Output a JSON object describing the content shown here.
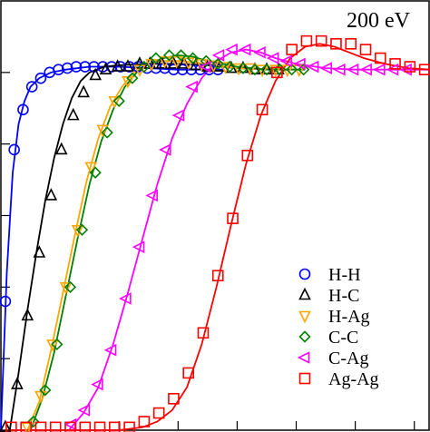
{
  "chart_data": {
    "type": "scatter",
    "title": "",
    "annotation": "200 eV",
    "xlabel": "",
    "ylabel": "",
    "xlim": [
      0,
      14.5
    ],
    "ylim": [
      0,
      1.5
    ],
    "yticks": [
      0.25,
      0.5,
      0.75,
      1.0,
      1.25
    ],
    "xticks": [
      4,
      6,
      8,
      10,
      12,
      14
    ],
    "legend_position": "lower-right",
    "series": [
      {
        "name": "H-H",
        "color": "#0000ff",
        "marker": "circle",
        "points": [
          [
            0.15,
            0.45
          ],
          [
            0.45,
            0.98
          ],
          [
            0.75,
            1.12
          ],
          [
            1.05,
            1.2
          ],
          [
            1.35,
            1.23
          ],
          [
            1.65,
            1.25
          ],
          [
            1.95,
            1.26
          ],
          [
            2.25,
            1.265
          ],
          [
            2.55,
            1.27
          ],
          [
            2.85,
            1.27
          ],
          [
            3.15,
            1.27
          ],
          [
            3.45,
            1.27
          ],
          [
            3.75,
            1.27
          ],
          [
            4.05,
            1.27
          ],
          [
            4.35,
            1.27
          ],
          [
            4.65,
            1.27
          ],
          [
            4.95,
            1.265
          ],
          [
            5.25,
            1.265
          ],
          [
            5.55,
            1.265
          ],
          [
            5.85,
            1.26
          ],
          [
            6.15,
            1.26
          ],
          [
            6.45,
            1.26
          ],
          [
            6.75,
            1.26
          ],
          [
            7.05,
            1.26
          ],
          [
            7.35,
            1.26
          ]
        ],
        "curve": [
          [
            0,
            0
          ],
          [
            0.2,
            0.55
          ],
          [
            0.4,
            0.9
          ],
          [
            0.6,
            1.07
          ],
          [
            0.8,
            1.15
          ],
          [
            1.0,
            1.2
          ],
          [
            1.3,
            1.23
          ],
          [
            1.7,
            1.25
          ],
          [
            2.2,
            1.26
          ],
          [
            3.0,
            1.27
          ],
          [
            4.0,
            1.27
          ],
          [
            5.0,
            1.265
          ],
          [
            6.0,
            1.26
          ],
          [
            7.5,
            1.26
          ]
        ]
      },
      {
        "name": "H-C",
        "color": "#000000",
        "marker": "triangle-up",
        "points": [
          [
            0.15,
            0.01
          ],
          [
            0.55,
            0.16
          ],
          [
            0.9,
            0.4
          ],
          [
            1.3,
            0.62
          ],
          [
            1.7,
            0.82
          ],
          [
            2.05,
            0.98
          ],
          [
            2.45,
            1.1
          ],
          [
            2.8,
            1.18
          ],
          [
            3.2,
            1.24
          ],
          [
            3.55,
            1.26
          ],
          [
            3.95,
            1.27
          ],
          [
            4.3,
            1.27
          ],
          [
            4.7,
            1.28
          ],
          [
            5.05,
            1.28
          ],
          [
            5.45,
            1.28
          ],
          [
            5.85,
            1.28
          ],
          [
            6.2,
            1.28
          ],
          [
            6.6,
            1.275
          ],
          [
            7.0,
            1.27
          ],
          [
            7.4,
            1.27
          ],
          [
            7.8,
            1.265
          ],
          [
            8.2,
            1.265
          ],
          [
            8.6,
            1.26
          ],
          [
            9.0,
            1.26
          ],
          [
            9.4,
            1.26
          ]
        ],
        "curve": [
          [
            0.3,
            0
          ],
          [
            0.6,
            0.2
          ],
          [
            0.9,
            0.42
          ],
          [
            1.2,
            0.62
          ],
          [
            1.5,
            0.8
          ],
          [
            1.8,
            0.95
          ],
          [
            2.1,
            1.07
          ],
          [
            2.4,
            1.16
          ],
          [
            2.7,
            1.22
          ],
          [
            3.0,
            1.25
          ],
          [
            3.5,
            1.27
          ],
          [
            4.0,
            1.275
          ],
          [
            5.0,
            1.28
          ],
          [
            6.0,
            1.28
          ],
          [
            7.0,
            1.275
          ],
          [
            8.0,
            1.265
          ],
          [
            9.5,
            1.26
          ]
        ]
      },
      {
        "name": "H-Ag",
        "color": "#ffa500",
        "marker": "triangle-down",
        "points": [
          [
            0.9,
            0.01
          ],
          [
            1.35,
            0.12
          ],
          [
            1.75,
            0.3
          ],
          [
            2.2,
            0.5
          ],
          [
            2.6,
            0.7
          ],
          [
            3.05,
            0.92
          ],
          [
            3.45,
            1.05
          ],
          [
            3.85,
            1.15
          ],
          [
            4.3,
            1.22
          ],
          [
            4.7,
            1.26
          ],
          [
            5.1,
            1.28
          ],
          [
            5.55,
            1.29
          ],
          [
            5.95,
            1.29
          ],
          [
            6.35,
            1.285
          ],
          [
            6.8,
            1.28
          ],
          [
            7.2,
            1.275
          ],
          [
            7.6,
            1.27
          ],
          [
            8.05,
            1.265
          ],
          [
            8.45,
            1.265
          ],
          [
            8.85,
            1.26
          ],
          [
            9.3,
            1.26
          ],
          [
            9.7,
            1.26
          ],
          [
            10.1,
            1.26
          ]
        ],
        "curve": [
          [
            0.9,
            0
          ],
          [
            1.3,
            0.1
          ],
          [
            1.7,
            0.28
          ],
          [
            2.1,
            0.48
          ],
          [
            2.5,
            0.68
          ],
          [
            2.9,
            0.87
          ],
          [
            3.3,
            1.02
          ],
          [
            3.7,
            1.13
          ],
          [
            4.1,
            1.2
          ],
          [
            4.5,
            1.25
          ],
          [
            5.0,
            1.28
          ],
          [
            5.5,
            1.29
          ],
          [
            6.0,
            1.29
          ],
          [
            7.0,
            1.28
          ],
          [
            8.0,
            1.265
          ],
          [
            10.2,
            1.26
          ]
        ]
      },
      {
        "name": "C-C",
        "color": "#008000",
        "marker": "diamond",
        "points": [
          [
            1.1,
            0.03
          ],
          [
            1.5,
            0.14
          ],
          [
            1.9,
            0.3
          ],
          [
            2.35,
            0.5
          ],
          [
            2.75,
            0.7
          ],
          [
            3.2,
            0.9
          ],
          [
            3.6,
            1.04
          ],
          [
            4.0,
            1.15
          ],
          [
            4.45,
            1.23
          ],
          [
            4.85,
            1.27
          ],
          [
            5.25,
            1.3
          ],
          [
            5.7,
            1.31
          ],
          [
            6.1,
            1.31
          ],
          [
            6.5,
            1.3
          ],
          [
            6.95,
            1.29
          ],
          [
            7.35,
            1.28
          ],
          [
            7.75,
            1.27
          ],
          [
            8.2,
            1.265
          ],
          [
            8.6,
            1.26
          ],
          [
            9.0,
            1.26
          ],
          [
            9.45,
            1.26
          ],
          [
            9.85,
            1.26
          ],
          [
            10.25,
            1.26
          ]
        ],
        "curve": [
          [
            1.0,
            0
          ],
          [
            1.4,
            0.11
          ],
          [
            1.8,
            0.27
          ],
          [
            2.2,
            0.47
          ],
          [
            2.6,
            0.67
          ],
          [
            3.0,
            0.86
          ],
          [
            3.4,
            1.01
          ],
          [
            3.8,
            1.12
          ],
          [
            4.2,
            1.2
          ],
          [
            4.6,
            1.25
          ],
          [
            5.0,
            1.28
          ],
          [
            5.5,
            1.3
          ],
          [
            6.0,
            1.31
          ],
          [
            6.5,
            1.305
          ],
          [
            7.0,
            1.29
          ],
          [
            8.0,
            1.27
          ],
          [
            9.0,
            1.26
          ],
          [
            10.3,
            1.26
          ]
        ]
      },
      {
        "name": "C-Ag",
        "color": "#ff00ff",
        "marker": "triangle-left",
        "points": [
          [
            2.4,
            0.02
          ],
          [
            2.85,
            0.07
          ],
          [
            3.3,
            0.16
          ],
          [
            3.75,
            0.28
          ],
          [
            4.25,
            0.46
          ],
          [
            4.7,
            0.64
          ],
          [
            5.15,
            0.82
          ],
          [
            5.6,
            0.98
          ],
          [
            6.05,
            1.1
          ],
          [
            6.5,
            1.2
          ],
          [
            6.95,
            1.27
          ],
          [
            7.4,
            1.31
          ],
          [
            7.85,
            1.33
          ],
          [
            8.3,
            1.33
          ],
          [
            8.8,
            1.32
          ],
          [
            9.25,
            1.3
          ],
          [
            9.7,
            1.29
          ],
          [
            10.15,
            1.28
          ],
          [
            10.6,
            1.27
          ],
          [
            11.05,
            1.265
          ],
          [
            11.5,
            1.26
          ],
          [
            11.95,
            1.26
          ],
          [
            12.4,
            1.26
          ],
          [
            12.85,
            1.26
          ],
          [
            13.3,
            1.26
          ],
          [
            13.75,
            1.26
          ]
        ],
        "curve": [
          [
            2.3,
            0
          ],
          [
            2.8,
            0.06
          ],
          [
            3.3,
            0.15
          ],
          [
            3.8,
            0.3
          ],
          [
            4.3,
            0.48
          ],
          [
            4.8,
            0.67
          ],
          [
            5.3,
            0.86
          ],
          [
            5.8,
            1.02
          ],
          [
            6.3,
            1.14
          ],
          [
            6.8,
            1.23
          ],
          [
            7.3,
            1.29
          ],
          [
            7.8,
            1.32
          ],
          [
            8.3,
            1.33
          ],
          [
            8.8,
            1.32
          ],
          [
            9.3,
            1.3
          ],
          [
            10.0,
            1.28
          ],
          [
            11.0,
            1.265
          ],
          [
            12.0,
            1.26
          ],
          [
            14.5,
            1.26
          ]
        ]
      },
      {
        "name": "Ag-Ag",
        "color": "#ff0000",
        "marker": "square",
        "points": [
          [
            0.35,
            0.01
          ],
          [
            0.85,
            0.01
          ],
          [
            1.35,
            0.01
          ],
          [
            1.85,
            0.01
          ],
          [
            2.35,
            0.01
          ],
          [
            2.85,
            0.01
          ],
          [
            3.35,
            0.01
          ],
          [
            3.85,
            0.01
          ],
          [
            4.35,
            0.01
          ],
          [
            4.85,
            0.03
          ],
          [
            5.35,
            0.06
          ],
          [
            5.85,
            0.11
          ],
          [
            6.35,
            0.2
          ],
          [
            6.85,
            0.34
          ],
          [
            7.35,
            0.54
          ],
          [
            7.85,
            0.74
          ],
          [
            8.35,
            0.96
          ],
          [
            8.85,
            1.12
          ],
          [
            9.35,
            1.25
          ],
          [
            9.85,
            1.33
          ],
          [
            10.35,
            1.36
          ],
          [
            10.85,
            1.36
          ],
          [
            11.35,
            1.35
          ],
          [
            11.85,
            1.35
          ],
          [
            12.35,
            1.33
          ],
          [
            12.85,
            1.3
          ],
          [
            13.35,
            1.28
          ],
          [
            13.85,
            1.27
          ],
          [
            14.35,
            1.26
          ]
        ],
        "curve": [
          [
            0.2,
            0
          ],
          [
            4.0,
            0
          ],
          [
            4.8,
            0.01
          ],
          [
            5.3,
            0.03
          ],
          [
            5.8,
            0.07
          ],
          [
            6.3,
            0.15
          ],
          [
            6.8,
            0.3
          ],
          [
            7.3,
            0.5
          ],
          [
            7.8,
            0.72
          ],
          [
            8.3,
            0.93
          ],
          [
            8.8,
            1.1
          ],
          [
            9.3,
            1.22
          ],
          [
            9.8,
            1.3
          ],
          [
            10.3,
            1.34
          ],
          [
            10.8,
            1.35
          ],
          [
            11.3,
            1.34
          ],
          [
            11.8,
            1.32
          ],
          [
            12.3,
            1.3
          ],
          [
            13.0,
            1.28
          ],
          [
            13.8,
            1.265
          ],
          [
            14.5,
            1.26
          ]
        ]
      }
    ]
  }
}
